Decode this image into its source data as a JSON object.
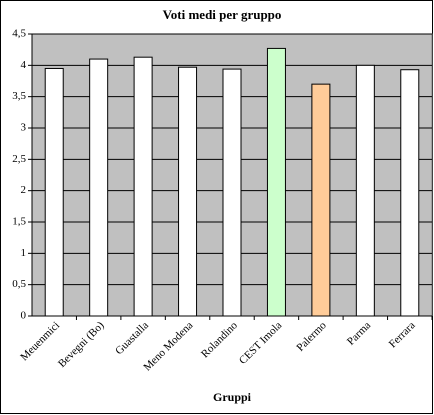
{
  "chart_data": {
    "type": "bar",
    "title": "Voti medi per gruppo",
    "x_label": "Gruppi",
    "categories": [
      "Meuenmici",
      "Bevegni (Bo)",
      "Guastalla",
      "Meno Modena",
      "Rolandino",
      "CEST Imola",
      "Palermo",
      "Parma",
      "Ferrara"
    ],
    "values": [
      3.95,
      4.1,
      4.13,
      3.97,
      3.94,
      4.27,
      3.7,
      4.0,
      3.93
    ],
    "colors": [
      "#ffffff",
      "#ffffff",
      "#ffffff",
      "#ffffff",
      "#ffffff",
      "#ccffcc",
      "#ffcc99",
      "#ffffff",
      "#ffffff"
    ],
    "ylim": [
      0,
      4.5
    ],
    "yticks": [
      0,
      {
        "value": 0.5,
        "label": "0,5"
      },
      1,
      {
        "value": 1.5,
        "label": "1,5"
      },
      2,
      {
        "value": 2.5,
        "label": "2,5"
      },
      3,
      {
        "value": 3.5,
        "label": "3,5"
      },
      4,
      {
        "value": 4.5,
        "label": "4,5"
      }
    ],
    "grid": true,
    "plot_background": "#c0c0c0"
  }
}
